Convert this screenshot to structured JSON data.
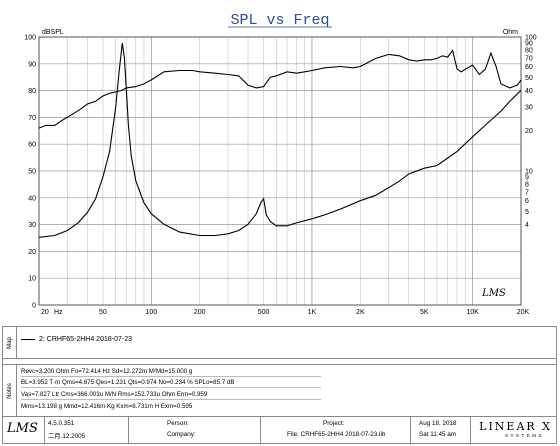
{
  "chart_data": {
    "type": "line",
    "title": "SPL vs Freq",
    "left_axis": {
      "unit": "dBSPL",
      "range": [
        0,
        100
      ],
      "ticks": [
        "0",
        "10",
        "20",
        "30",
        "40",
        "50",
        "60",
        "70",
        "80",
        "90",
        "100"
      ]
    },
    "right_axis": {
      "unit": "Ohm",
      "range": [
        1,
        100
      ],
      "scale": "log",
      "ticks": [
        "4",
        "5",
        "6",
        "7",
        "8",
        "9",
        "10",
        "20",
        "30",
        "40",
        "50",
        "60",
        "70",
        "80",
        "90",
        "100"
      ]
    },
    "x_axis": {
      "scale": "log",
      "range": [
        20,
        20000
      ],
      "unit": "Hz",
      "ticks": [
        "20",
        "50",
        "100",
        "200",
        "500",
        "1K",
        "2K",
        "5K",
        "10K",
        "20K"
      ]
    },
    "grid": true,
    "series": [
      {
        "axis": "left",
        "color": "#000000",
        "x": [
          20,
          22,
          25,
          28,
          32,
          36,
          40,
          45,
          50,
          55,
          60,
          65,
          70,
          80,
          90,
          100,
          120,
          150,
          180,
          200,
          250,
          300,
          350,
          400,
          450,
          500,
          550,
          600,
          700,
          800,
          900,
          1000,
          1200,
          1500,
          1800,
          2000,
          2500,
          3000,
          3500,
          4000,
          4500,
          5000,
          5500,
          6000,
          6500,
          7000,
          7500,
          8000,
          8500,
          9000,
          10000,
          11000,
          12000,
          13000,
          14000,
          15000,
          17000,
          19000,
          20000
        ],
        "y": [
          66,
          67,
          67,
          69,
          71,
          73,
          75,
          76,
          78,
          79,
          79.5,
          80,
          81,
          81.5,
          82.5,
          84,
          87,
          87.5,
          87.5,
          87,
          86.5,
          86,
          85.5,
          82,
          81,
          81.5,
          85,
          85.5,
          87,
          86.5,
          87,
          87.5,
          88.5,
          89,
          88.5,
          89,
          92,
          93.5,
          93,
          91.5,
          91,
          91.5,
          91.5,
          92,
          93,
          92.5,
          95,
          88,
          87,
          88,
          89.5,
          86,
          88,
          94,
          89,
          82.5,
          81,
          82,
          84
        ]
      },
      {
        "axis": "right",
        "color": "#000000",
        "x": [
          20,
          25,
          30,
          35,
          40,
          45,
          50,
          55,
          60,
          63,
          66,
          68,
          70,
          72,
          75,
          80,
          90,
          100,
          120,
          150,
          200,
          250,
          300,
          350,
          400,
          450,
          480,
          500,
          520,
          550,
          600,
          700,
          800,
          1000,
          1200,
          1500,
          2000,
          2500,
          3000,
          3500,
          4000,
          5000,
          6000,
          7000,
          8000,
          10000,
          12000,
          15000,
          17000,
          20000
        ],
        "y": [
          3.2,
          3.3,
          3.6,
          4.1,
          4.9,
          6.2,
          9,
          14,
          30,
          55,
          90,
          70,
          40,
          22,
          13,
          8.5,
          5.8,
          4.8,
          4.0,
          3.5,
          3.3,
          3.3,
          3.4,
          3.6,
          4.0,
          4.8,
          5.8,
          6.2,
          4.7,
          4.2,
          3.9,
          3.9,
          4.1,
          4.4,
          4.7,
          5.2,
          6.0,
          6.6,
          7.5,
          8.4,
          9.5,
          10.5,
          11,
          12.5,
          14,
          18,
          22,
          28,
          33,
          40
        ]
      }
    ],
    "watermark": "LMS"
  },
  "map": {
    "side_label": "Map",
    "legend_entry": "2: CRHF65-2HH4 2018-07-23"
  },
  "notes": {
    "side_label": "Notes",
    "lines": [
      "Revc=3.200 Ohm  Fo=72.414 Hz  Sd=12.272m M²Md=15.000 g",
      "BL=3.952 T·m  Qms=4.675  Qes=1.231  Qts=0.974  No=0.234 %  SPLo=85.7 dB",
      "Vas=7.827 Ltr  Cms=366.003u M/N  Rms=152.733u Ohm  Erm=0.959",
      "Mms=13.198 g  Mmd=12.416m Kg  Kxm=8.731m H  Exm=0.595"
    ]
  },
  "footer": {
    "version": "4.5.0.351",
    "build_date": "二月.12.2005",
    "person_label": "Person:",
    "company_label": "Company:",
    "project_label": "Project:",
    "file_label": "File: CRHF65-2HH4 2018-07-23.lib",
    "date": "Aug 18, 2018",
    "time": "Sat 11:45 am",
    "linearx": "LINEAR X",
    "linearx_sub": "SYSTEMS",
    "lms_logo": "LMS"
  }
}
